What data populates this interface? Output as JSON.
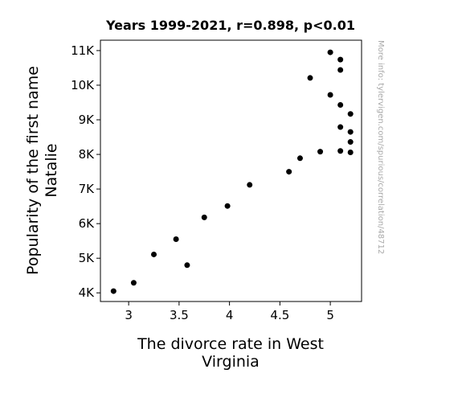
{
  "chart_data": {
    "type": "scatter",
    "title": "Years 1999-2021, r=0.898, p<0.01",
    "xlabel_lines": [
      "The divorce rate in West",
      "Virginia"
    ],
    "ylabel_lines": [
      "Popularity of the first name",
      "Natalie"
    ],
    "side_note": "More info: tylervigen.com/spurious/correlation/48712",
    "xlim": [
      2.72,
      5.31
    ],
    "ylim": [
      3750,
      11300
    ],
    "x_ticks": [
      {
        "value": 3,
        "label": "3"
      },
      {
        "value": 3.5,
        "label": "3.5"
      },
      {
        "value": 4,
        "label": "4"
      },
      {
        "value": 4.5,
        "label": "4.5"
      },
      {
        "value": 5,
        "label": "5"
      }
    ],
    "y_ticks": [
      {
        "value": 4000,
        "label": "4K"
      },
      {
        "value": 5000,
        "label": "5K"
      },
      {
        "value": 6000,
        "label": "6K"
      },
      {
        "value": 7000,
        "label": "7K"
      },
      {
        "value": 8000,
        "label": "8K"
      },
      {
        "value": 9000,
        "label": "9K"
      },
      {
        "value": 10000,
        "label": "10K"
      },
      {
        "value": 11000,
        "label": "11K"
      }
    ],
    "grid": false,
    "marker_color": "#000000",
    "points": [
      {
        "x": 2.85,
        "y": 4050
      },
      {
        "x": 3.05,
        "y": 4290
      },
      {
        "x": 3.25,
        "y": 5110
      },
      {
        "x": 3.47,
        "y": 5550
      },
      {
        "x": 3.58,
        "y": 4800
      },
      {
        "x": 3.75,
        "y": 6180
      },
      {
        "x": 3.98,
        "y": 6510
      },
      {
        "x": 4.2,
        "y": 7120
      },
      {
        "x": 4.59,
        "y": 7500
      },
      {
        "x": 4.7,
        "y": 7890
      },
      {
        "x": 4.8,
        "y": 10210
      },
      {
        "x": 4.9,
        "y": 8080
      },
      {
        "x": 5.0,
        "y": 10950
      },
      {
        "x": 5.0,
        "y": 9720
      },
      {
        "x": 5.1,
        "y": 10740
      },
      {
        "x": 5.1,
        "y": 10440
      },
      {
        "x": 5.1,
        "y": 9430
      },
      {
        "x": 5.1,
        "y": 8790
      },
      {
        "x": 5.1,
        "y": 8100
      },
      {
        "x": 5.2,
        "y": 9170
      },
      {
        "x": 5.2,
        "y": 8650
      },
      {
        "x": 5.2,
        "y": 8360
      },
      {
        "x": 5.2,
        "y": 8060
      }
    ]
  }
}
